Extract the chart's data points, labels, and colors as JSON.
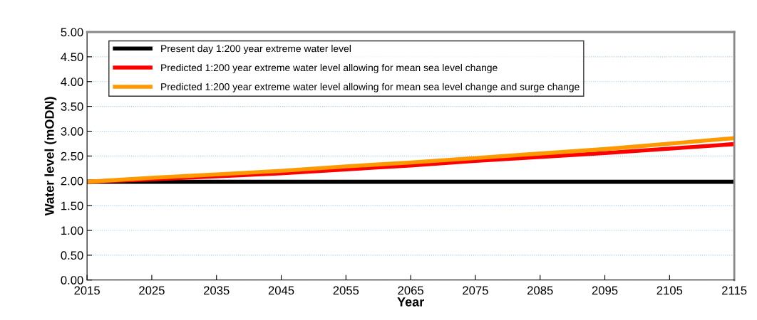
{
  "chart_data": {
    "type": "line",
    "xlabel": "Year",
    "ylabel": "Water level (mODN)",
    "x": [
      2015,
      2025,
      2035,
      2045,
      2055,
      2065,
      2075,
      2085,
      2095,
      2105,
      2115
    ],
    "series": [
      {
        "name": "Present day 1:200 year extreme water level",
        "color": "#000000",
        "values": [
          1.98,
          1.98,
          1.98,
          1.98,
          1.98,
          1.98,
          1.98,
          1.98,
          1.98,
          1.98,
          1.98
        ]
      },
      {
        "name": "Predicted 1:200 year extreme water level allowing for mean sea level change",
        "color": "#ff0000",
        "values": [
          1.98,
          2.03,
          2.09,
          2.15,
          2.23,
          2.31,
          2.4,
          2.48,
          2.56,
          2.65,
          2.74
        ]
      },
      {
        "name": "Predicted 1:200 year extreme water level allowing for mean sea level change and surge change",
        "color": "#ff9900",
        "values": [
          1.98,
          2.06,
          2.13,
          2.2,
          2.29,
          2.37,
          2.46,
          2.55,
          2.64,
          2.75,
          2.86
        ]
      }
    ],
    "xlim": [
      2015,
      2115
    ],
    "xticks": [
      2015,
      2025,
      2035,
      2045,
      2055,
      2065,
      2075,
      2085,
      2095,
      2105,
      2115
    ],
    "ylim": [
      0,
      5
    ],
    "yticks": [
      {
        "value": 0,
        "label": "0.00"
      },
      {
        "value": 0.5,
        "label": "0.50"
      },
      {
        "value": 1,
        "label": "1.00"
      },
      {
        "value": 1.5,
        "label": "1.50"
      },
      {
        "value": 2,
        "label": "2.00"
      },
      {
        "value": 2.5,
        "label": "2.50"
      },
      {
        "value": 3,
        "label": "3.00"
      },
      {
        "value": 3.5,
        "label": "3.50"
      },
      {
        "value": 4,
        "label": "4.00"
      },
      {
        "value": 4.5,
        "label": "4.50"
      },
      {
        "value": 5,
        "label": "5.00"
      }
    ],
    "grid": "y",
    "legend": "top left",
    "marker": "none",
    "line_style": "solid"
  }
}
